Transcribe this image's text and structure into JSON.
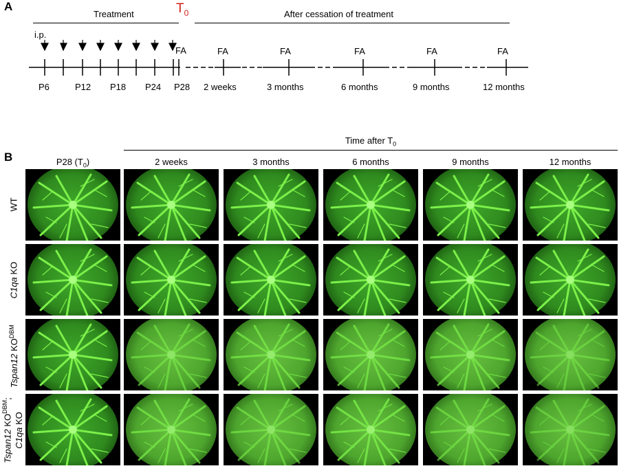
{
  "panel_a": {
    "letter": "A",
    "treatment_label": "Treatment",
    "t0_label": "T",
    "t0_sub": "0",
    "after_label": "After cessation of treatment",
    "ip_label": "i.p.",
    "fa_label": "FA",
    "day_ticks": [
      "P6",
      "P12",
      "P18",
      "P24",
      "P28"
    ],
    "time_ticks": [
      "2 weeks",
      "3 months",
      "6 months",
      "9 months",
      "12 months"
    ]
  },
  "panel_b": {
    "letter": "B",
    "time_after_label": "Time after T",
    "time_after_sub": "0",
    "p28_label": "P28 (T",
    "p28_sub": "0",
    "p28_close": ")",
    "columns": [
      "2 weeks",
      "3 months",
      "6 months",
      "9 months",
      "12 months"
    ],
    "rows": [
      {
        "label": "WT"
      },
      {
        "label_italic": "C1qa",
        "label_rest": " KO"
      },
      {
        "label_italic": "Tspan12",
        "label_rest": " KO",
        "label_sup": "DBM"
      },
      {
        "label_italic": "Tspan12",
        "label_rest": " KO",
        "label_sup": "DBM",
        "label_sep": ";",
        "label2_italic": "C1qa",
        "label2_rest": " KO"
      }
    ]
  },
  "colors": {
    "t0_red": "#d0201a",
    "fluor_green": "#5ee23a",
    "background": "#000000"
  }
}
